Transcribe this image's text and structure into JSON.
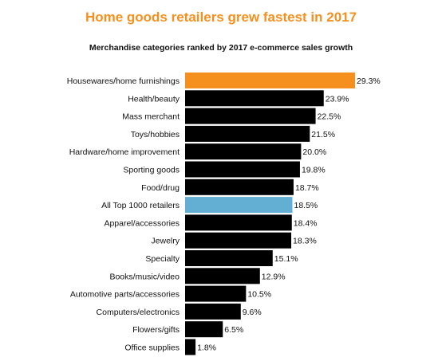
{
  "chart_data": {
    "type": "bar",
    "orientation": "horizontal",
    "title": "Home goods retailers grew fastest in 2017",
    "subtitle": "Merchandise categories ranked by 2017 e-commerce sales growth",
    "categories": [
      "Housewares/home furnishings",
      "Health/beauty",
      "Mass merchant",
      "Toys/hobbies",
      "Hardware/home improvement",
      "Sporting goods",
      "Food/drug",
      "All Top 1000 retailers",
      "Apparel/accessories",
      "Jewelry",
      "Specialty",
      "Books/music/video",
      "Automotive parts/accessories",
      "Computers/electronics",
      "Flowers/gifts",
      "Office supplies"
    ],
    "values": [
      29.3,
      23.9,
      22.5,
      21.5,
      20.0,
      19.8,
      18.7,
      18.5,
      18.4,
      18.3,
      15.1,
      12.9,
      10.5,
      9.6,
      6.5,
      1.8
    ],
    "value_labels": [
      "29.3%",
      "23.9%",
      "22.5%",
      "21.5%",
      "20.0%",
      "19.8%",
      "18.7%",
      "18.5%",
      "18.4%",
      "18.3%",
      "15.1%",
      "12.9%",
      "10.5%",
      "9.6%",
      "6.5%",
      "1.8%"
    ],
    "unit": "%",
    "xlim": [
      0,
      29.3
    ],
    "grid": false,
    "legend": "none",
    "colors": {
      "default": "#000000",
      "highlight_top": "#f5901e",
      "highlight_benchmark": "#63afd3"
    },
    "bar_colors": [
      "highlight_top",
      "default",
      "default",
      "default",
      "default",
      "default",
      "default",
      "highlight_benchmark",
      "default",
      "default",
      "default",
      "default",
      "default",
      "default",
      "default",
      "default"
    ]
  }
}
